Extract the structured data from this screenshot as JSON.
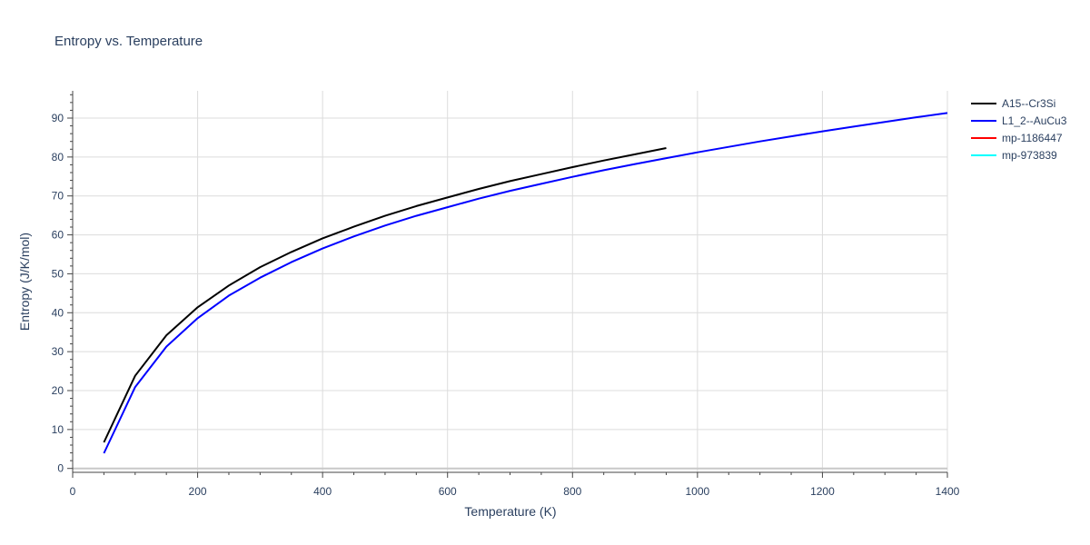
{
  "chart_data": {
    "type": "line",
    "title": "Entropy vs. Temperature",
    "xlabel": "Temperature (K)",
    "ylabel": "Entropy (J/K/mol)",
    "xlim": [
      0,
      1400
    ],
    "ylim": [
      -1,
      97
    ],
    "x_ticks": [
      0,
      200,
      400,
      600,
      800,
      1000,
      1200,
      1400
    ],
    "y_ticks": [
      0,
      10,
      20,
      30,
      40,
      50,
      60,
      70,
      80,
      90
    ],
    "grid": true,
    "legend_position": "right",
    "series": [
      {
        "name": "A15--Cr3Si",
        "color": "#000000",
        "x": [
          50,
          100,
          150,
          200,
          250,
          300,
          350,
          400,
          450,
          500,
          550,
          600,
          650,
          700,
          750,
          800,
          850,
          900,
          950
        ],
        "y": [
          6.7,
          23.8,
          34.2,
          41.4,
          47.0,
          51.7,
          55.6,
          59.1,
          62.1,
          64.9,
          67.4,
          69.6,
          71.8,
          73.8,
          75.6,
          77.4,
          79.1,
          80.7,
          82.3
        ]
      },
      {
        "name": "L1_2--AuCu3",
        "color": "#0000ff",
        "x": [
          50,
          100,
          150,
          200,
          250,
          300,
          350,
          400,
          450,
          500,
          550,
          600,
          650,
          700,
          750,
          800,
          850,
          900,
          950,
          1000,
          1050,
          1100,
          1150,
          1200,
          1250,
          1300,
          1350,
          1400
        ],
        "y": [
          3.9,
          20.9,
          31.3,
          38.6,
          44.4,
          49.0,
          53.0,
          56.5,
          59.6,
          62.4,
          64.9,
          67.1,
          69.3,
          71.3,
          73.1,
          74.9,
          76.6,
          78.2,
          79.7,
          81.2,
          82.6,
          84.0,
          85.3,
          86.6,
          87.8,
          89.0,
          90.2,
          91.3
        ]
      },
      {
        "name": "mp-1186447",
        "color": "#ff0000",
        "x": [],
        "y": []
      },
      {
        "name": "mp-973839",
        "color": "#00ffff",
        "x": [],
        "y": []
      }
    ]
  }
}
